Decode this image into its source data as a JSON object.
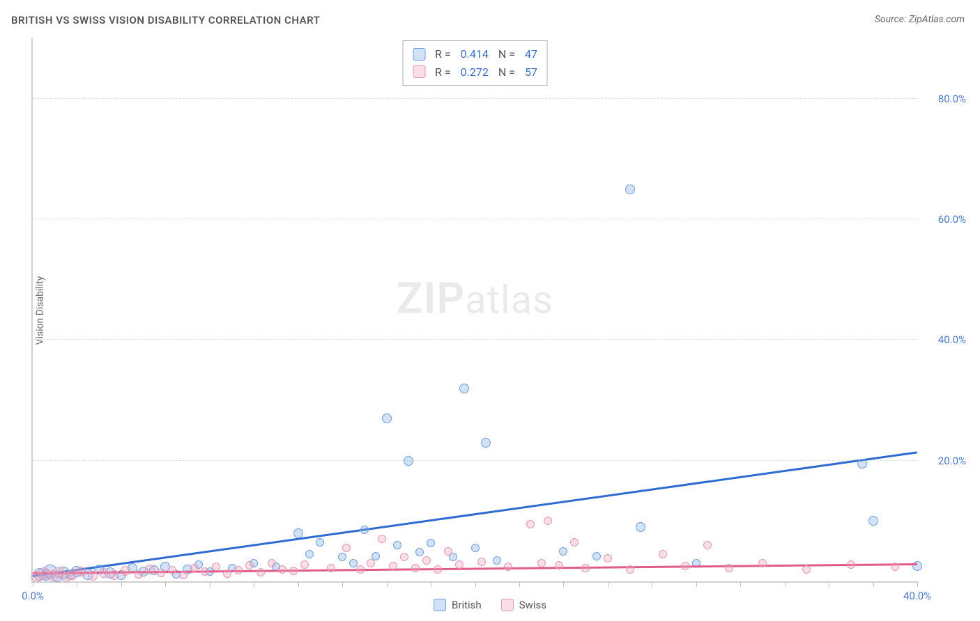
{
  "title": "BRITISH VS SWISS VISION DISABILITY CORRELATION CHART",
  "source": "Source: ZipAtlas.com",
  "ylabel": "Vision Disability",
  "watermark_bold": "ZIP",
  "watermark_light": "atlas",
  "chart": {
    "type": "scatter",
    "xlim": [
      0,
      40
    ],
    "ylim": [
      0,
      90
    ],
    "x_ticks": [
      0,
      2,
      4,
      6,
      8,
      10,
      12,
      14,
      16,
      18,
      20,
      22,
      24,
      26,
      28,
      30,
      32,
      34,
      36,
      38,
      40
    ],
    "x_tick_labels_at": {
      "0": "0.0%",
      "40": "40.0%"
    },
    "y_gridlines": [
      20,
      40,
      60,
      80
    ],
    "y_tick_labels": {
      "20": "20.0%",
      "40": "40.0%",
      "60": "60.0%",
      "80": "80.0%"
    },
    "grid_color": "#e0e0e0",
    "axis_color": "#d0d0d0",
    "tick_label_color": "#4a7ac7",
    "background_color": "#ffffff",
    "series": [
      {
        "name": "British",
        "color_fill": "rgba(122,168,230,0.35)",
        "color_stroke": "#6f9fde",
        "trend_color": "#2d6bd1",
        "trend": {
          "x1": 0,
          "y1": 1.0,
          "x2": 40,
          "y2": 21.5
        },
        "R": "0.414",
        "N": "47",
        "points": [
          {
            "x": 0.3,
            "y": 1.2,
            "r": 9
          },
          {
            "x": 0.6,
            "y": 1.0,
            "r": 8
          },
          {
            "x": 0.8,
            "y": 1.6,
            "r": 10
          },
          {
            "x": 1.1,
            "y": 0.8,
            "r": 8
          },
          {
            "x": 1.4,
            "y": 1.4,
            "r": 9
          },
          {
            "x": 1.7,
            "y": 1.0,
            "r": 7
          },
          {
            "x": 2.0,
            "y": 1.6,
            "r": 8
          },
          {
            "x": 2.5,
            "y": 1.2,
            "r": 8
          },
          {
            "x": 3.0,
            "y": 2.0,
            "r": 7
          },
          {
            "x": 3.5,
            "y": 1.4,
            "r": 8
          },
          {
            "x": 4.0,
            "y": 1.0,
            "r": 7
          },
          {
            "x": 4.5,
            "y": 2.2,
            "r": 7
          },
          {
            "x": 5.0,
            "y": 1.6,
            "r": 7
          },
          {
            "x": 5.5,
            "y": 1.8,
            "r": 7
          },
          {
            "x": 6.0,
            "y": 2.4,
            "r": 7
          },
          {
            "x": 6.5,
            "y": 1.2,
            "r": 6
          },
          {
            "x": 7.0,
            "y": 2.0,
            "r": 7
          },
          {
            "x": 7.5,
            "y": 2.8,
            "r": 6
          },
          {
            "x": 8.0,
            "y": 1.6,
            "r": 6
          },
          {
            "x": 9.0,
            "y": 2.2,
            "r": 6
          },
          {
            "x": 10.0,
            "y": 3.0,
            "r": 6
          },
          {
            "x": 11.0,
            "y": 2.4,
            "r": 6
          },
          {
            "x": 12.0,
            "y": 8.0,
            "r": 7
          },
          {
            "x": 12.5,
            "y": 4.5,
            "r": 6
          },
          {
            "x": 13.0,
            "y": 6.5,
            "r": 6
          },
          {
            "x": 14.0,
            "y": 4.0,
            "r": 6
          },
          {
            "x": 14.5,
            "y": 3.0,
            "r": 6
          },
          {
            "x": 15.0,
            "y": 8.5,
            "r": 6
          },
          {
            "x": 15.5,
            "y": 4.2,
            "r": 6
          },
          {
            "x": 16.0,
            "y": 27.0,
            "r": 7
          },
          {
            "x": 16.5,
            "y": 6.0,
            "r": 6
          },
          {
            "x": 17.0,
            "y": 20.0,
            "r": 7
          },
          {
            "x": 17.5,
            "y": 4.8,
            "r": 6
          },
          {
            "x": 18.0,
            "y": 6.3,
            "r": 6
          },
          {
            "x": 19.0,
            "y": 4.0,
            "r": 6
          },
          {
            "x": 19.5,
            "y": 32.0,
            "r": 7
          },
          {
            "x": 20.0,
            "y": 5.5,
            "r": 6
          },
          {
            "x": 20.5,
            "y": 23.0,
            "r": 7
          },
          {
            "x": 21.0,
            "y": 3.5,
            "r": 6
          },
          {
            "x": 24.0,
            "y": 5.0,
            "r": 6
          },
          {
            "x": 25.5,
            "y": 4.2,
            "r": 6
          },
          {
            "x": 27.0,
            "y": 65.0,
            "r": 7
          },
          {
            "x": 27.5,
            "y": 9.0,
            "r": 7
          },
          {
            "x": 30.0,
            "y": 3.0,
            "r": 6
          },
          {
            "x": 37.5,
            "y": 19.5,
            "r": 7
          },
          {
            "x": 38.0,
            "y": 10.0,
            "r": 7
          },
          {
            "x": 40.0,
            "y": 2.5,
            "r": 7
          }
        ]
      },
      {
        "name": "Swiss",
        "color_fill": "rgba(240,160,185,0.35)",
        "color_stroke": "#e398b0",
        "trend_color": "#e05a8a",
        "trend": {
          "x1": 0,
          "y1": 1.5,
          "x2": 40,
          "y2": 3.0
        },
        "R": "0.272",
        "N": "57",
        "points": [
          {
            "x": 0.2,
            "y": 0.8,
            "r": 8
          },
          {
            "x": 0.5,
            "y": 1.3,
            "r": 9
          },
          {
            "x": 0.9,
            "y": 0.9,
            "r": 8
          },
          {
            "x": 1.2,
            "y": 1.5,
            "r": 8
          },
          {
            "x": 1.5,
            "y": 0.7,
            "r": 7
          },
          {
            "x": 1.8,
            "y": 1.2,
            "r": 8
          },
          {
            "x": 2.2,
            "y": 1.6,
            "r": 7
          },
          {
            "x": 2.7,
            "y": 0.9,
            "r": 7
          },
          {
            "x": 3.2,
            "y": 1.4,
            "r": 7
          },
          {
            "x": 3.7,
            "y": 1.0,
            "r": 7
          },
          {
            "x": 4.2,
            "y": 1.7,
            "r": 7
          },
          {
            "x": 4.8,
            "y": 1.2,
            "r": 6
          },
          {
            "x": 5.3,
            "y": 2.0,
            "r": 7
          },
          {
            "x": 5.8,
            "y": 1.4,
            "r": 6
          },
          {
            "x": 6.3,
            "y": 1.8,
            "r": 6
          },
          {
            "x": 6.8,
            "y": 1.0,
            "r": 6
          },
          {
            "x": 7.3,
            "y": 2.2,
            "r": 6
          },
          {
            "x": 7.8,
            "y": 1.6,
            "r": 6
          },
          {
            "x": 8.3,
            "y": 2.4,
            "r": 6
          },
          {
            "x": 8.8,
            "y": 1.3,
            "r": 6
          },
          {
            "x": 9.3,
            "y": 1.9,
            "r": 6
          },
          {
            "x": 9.8,
            "y": 2.6,
            "r": 6
          },
          {
            "x": 10.3,
            "y": 1.5,
            "r": 6
          },
          {
            "x": 10.8,
            "y": 3.0,
            "r": 6
          },
          {
            "x": 11.3,
            "y": 2.0,
            "r": 6
          },
          {
            "x": 11.8,
            "y": 1.7,
            "r": 6
          },
          {
            "x": 12.3,
            "y": 2.8,
            "r": 6
          },
          {
            "x": 13.5,
            "y": 2.2,
            "r": 6
          },
          {
            "x": 14.2,
            "y": 5.5,
            "r": 6
          },
          {
            "x": 14.8,
            "y": 2.0,
            "r": 6
          },
          {
            "x": 15.3,
            "y": 3.0,
            "r": 6
          },
          {
            "x": 15.8,
            "y": 7.0,
            "r": 6
          },
          {
            "x": 16.3,
            "y": 2.5,
            "r": 6
          },
          {
            "x": 16.8,
            "y": 4.0,
            "r": 6
          },
          {
            "x": 17.3,
            "y": 2.2,
            "r": 6
          },
          {
            "x": 17.8,
            "y": 3.5,
            "r": 6
          },
          {
            "x": 18.3,
            "y": 2.0,
            "r": 6
          },
          {
            "x": 18.8,
            "y": 5.0,
            "r": 6
          },
          {
            "x": 19.3,
            "y": 2.8,
            "r": 6
          },
          {
            "x": 20.3,
            "y": 3.2,
            "r": 6
          },
          {
            "x": 21.5,
            "y": 2.4,
            "r": 6
          },
          {
            "x": 22.5,
            "y": 9.5,
            "r": 6
          },
          {
            "x": 23.0,
            "y": 3.0,
            "r": 6
          },
          {
            "x": 23.3,
            "y": 10.0,
            "r": 6
          },
          {
            "x": 23.8,
            "y": 2.6,
            "r": 6
          },
          {
            "x": 24.5,
            "y": 6.5,
            "r": 6
          },
          {
            "x": 25.0,
            "y": 2.2,
            "r": 6
          },
          {
            "x": 26.0,
            "y": 3.8,
            "r": 6
          },
          {
            "x": 27.0,
            "y": 2.0,
            "r": 6
          },
          {
            "x": 28.5,
            "y": 4.5,
            "r": 6
          },
          {
            "x": 29.5,
            "y": 2.5,
            "r": 6
          },
          {
            "x": 30.5,
            "y": 6.0,
            "r": 6
          },
          {
            "x": 31.5,
            "y": 2.2,
            "r": 6
          },
          {
            "x": 33.0,
            "y": 3.0,
            "r": 6
          },
          {
            "x": 35.0,
            "y": 2.0,
            "r": 6
          },
          {
            "x": 37.0,
            "y": 2.8,
            "r": 6
          },
          {
            "x": 39.0,
            "y": 2.4,
            "r": 6
          }
        ]
      }
    ]
  },
  "legend_top": {
    "rows": [
      {
        "sw_fill": "rgba(122,168,230,0.35)",
        "sw_stroke": "#6f9fde",
        "R_label": "R =",
        "R_val": "0.414",
        "N_label": "N =",
        "N_val": "47"
      },
      {
        "sw_fill": "rgba(240,160,185,0.35)",
        "sw_stroke": "#e398b0",
        "R_label": "R =",
        "R_val": "0.272",
        "N_label": "N =",
        "N_val": "57"
      }
    ]
  },
  "legend_bottom": {
    "items": [
      {
        "sw_fill": "rgba(122,168,230,0.35)",
        "sw_stroke": "#6f9fde",
        "label": "British"
      },
      {
        "sw_fill": "rgba(240,160,185,0.35)",
        "sw_stroke": "#e398b0",
        "label": "Swiss"
      }
    ]
  }
}
